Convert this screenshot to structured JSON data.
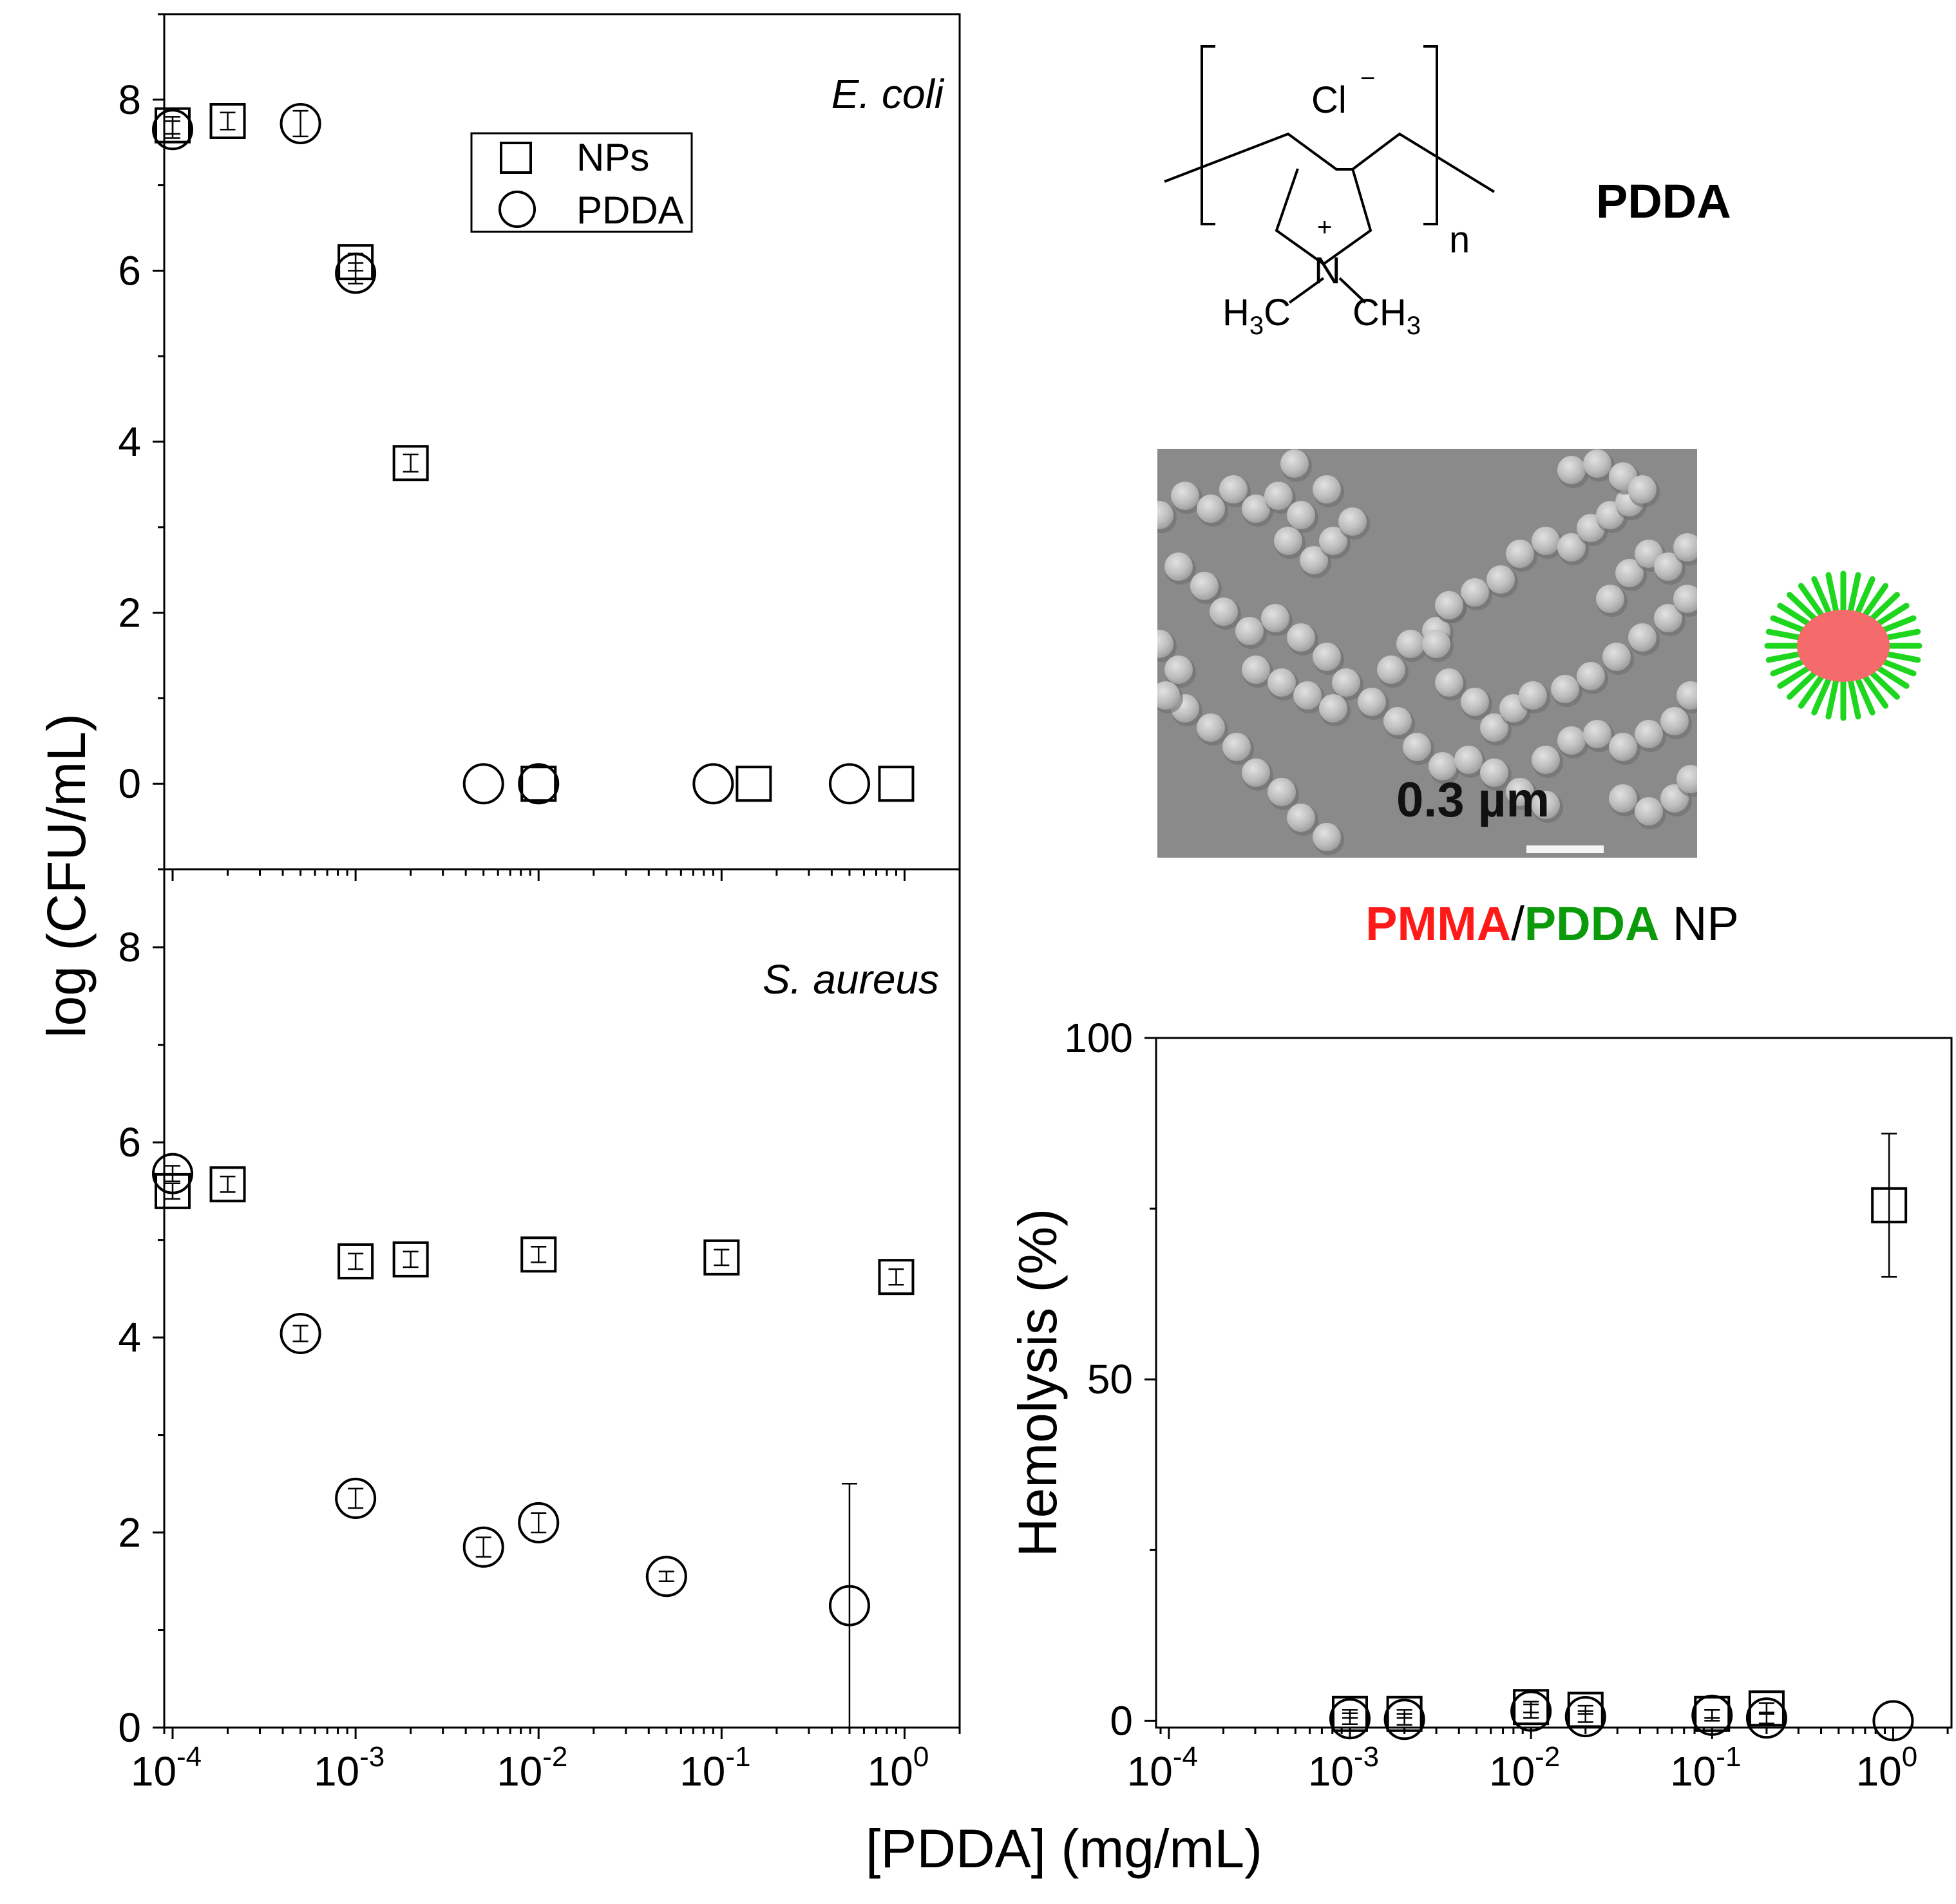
{
  "figure": {
    "shared_xlabel": "[PDDA] (mg/mL)",
    "shared_ylabel": "log (CFU/mL)"
  },
  "legend": {
    "items": [
      {
        "marker": "square",
        "label": "NPs"
      },
      {
        "marker": "circle",
        "label": "PDDA"
      }
    ]
  },
  "structure": {
    "title": "PDDA",
    "counter_ion": "Cl",
    "charge_minus": "−",
    "charge_plus": "+",
    "nitrogen": "N",
    "repeat_n": "n",
    "left_methyl": {
      "main": "H",
      "sub": "3",
      "tail": "C"
    },
    "right_methyl": {
      "main": "CH",
      "sub": "3"
    }
  },
  "sem": {
    "scale_label": "0.3 µm"
  },
  "np_label": {
    "parts": [
      {
        "text": "PMMA",
        "color": "#ff1a1a",
        "bold": true
      },
      {
        "text": "/",
        "color": "#000000",
        "bold": false
      },
      {
        "text": "PDDA",
        "color": "#0a9a0a",
        "bold": true
      },
      {
        "text": " NP",
        "color": "#000000",
        "bold": false
      }
    ]
  },
  "colors": {
    "np_core": "#f56b6b",
    "np_shell": "#1ed61e",
    "sem_bg": "#8a8a8a"
  },
  "chart_data": [
    {
      "id": "ecoli",
      "type": "scatter",
      "title": "E. coli",
      "xlabel": "[PDDA] (mg/mL)",
      "ylabel": "log (CFU/mL)",
      "xscale": "log",
      "xlim": [
        9e-05,
        2
      ],
      "ylim": [
        -1,
        9
      ],
      "yticks": [
        0,
        2,
        4,
        6,
        8
      ],
      "yticklabels": [
        "0",
        "2",
        "4",
        "6",
        "8"
      ],
      "xticks": [],
      "legend_position": "top-center",
      "series": [
        {
          "name": "NPs",
          "marker": "square",
          "points": [
            {
              "x": 0.0001,
              "y": 7.7,
              "err": 0.1
            },
            {
              "x": 0.0002,
              "y": 7.75,
              "err": 0.1
            },
            {
              "x": 0.001,
              "y": 6.1,
              "err": 0.1
            },
            {
              "x": 0.002,
              "y": 3.75,
              "err": 0.1
            },
            {
              "x": 0.01,
              "y": 0,
              "err": 0
            },
            {
              "x": 0.15,
              "y": 0,
              "err": 0
            },
            {
              "x": 0.9,
              "y": 0,
              "err": 0
            }
          ]
        },
        {
          "name": "PDDA",
          "marker": "circle",
          "points": [
            {
              "x": 0.0001,
              "y": 7.65,
              "err": 0.1
            },
            {
              "x": 0.0005,
              "y": 7.72,
              "err": 0.15
            },
            {
              "x": 0.001,
              "y": 5.97,
              "err": 0.12
            },
            {
              "x": 0.005,
              "y": 0,
              "err": 0
            },
            {
              "x": 0.01,
              "y": 0,
              "err": 0
            },
            {
              "x": 0.09,
              "y": 0,
              "err": 0
            },
            {
              "x": 0.5,
              "y": 0,
              "err": 0
            }
          ]
        }
      ]
    },
    {
      "id": "saureus",
      "type": "scatter",
      "title": "S. aureus",
      "xlabel": "[PDDA] (mg/mL)",
      "ylabel": "log (CFU/mL)",
      "xscale": "log",
      "xlim": [
        9e-05,
        2
      ],
      "ylim": [
        0,
        8.8
      ],
      "yticks": [
        0,
        2,
        4,
        6,
        8
      ],
      "yticklabels": [
        "0",
        "2",
        "4",
        "6",
        "8"
      ],
      "xticks": [
        0.0001,
        0.001,
        0.01,
        0.1,
        1
      ],
      "xticklabels": [
        {
          "base": "10",
          "exp": "-4"
        },
        {
          "base": "10",
          "exp": "-3"
        },
        {
          "base": "10",
          "exp": "-2"
        },
        {
          "base": "10",
          "exp": "-1"
        },
        {
          "base": "10",
          "exp": "0"
        }
      ],
      "series": [
        {
          "name": "NPs",
          "marker": "square",
          "points": [
            {
              "x": 0.0001,
              "y": 5.5,
              "err": 0.08
            },
            {
              "x": 0.0002,
              "y": 5.57,
              "err": 0.08
            },
            {
              "x": 0.001,
              "y": 4.78,
              "err": 0.08
            },
            {
              "x": 0.002,
              "y": 4.8,
              "err": 0.08
            },
            {
              "x": 0.01,
              "y": 4.85,
              "err": 0.08
            },
            {
              "x": 0.1,
              "y": 4.82,
              "err": 0.08
            },
            {
              "x": 0.9,
              "y": 4.62,
              "err": 0.08
            }
          ]
        },
        {
          "name": "PDDA",
          "marker": "circle",
          "points": [
            {
              "x": 0.0001,
              "y": 5.68,
              "err": 0.08
            },
            {
              "x": 0.0005,
              "y": 4.04,
              "err": 0.08
            },
            {
              "x": 0.001,
              "y": 2.35,
              "err": 0.1
            },
            {
              "x": 0.005,
              "y": 1.85,
              "err": 0.1
            },
            {
              "x": 0.01,
              "y": 2.1,
              "err": 0.1
            },
            {
              "x": 0.05,
              "y": 1.55,
              "err": 0.05
            },
            {
              "x": 0.5,
              "y": 1.25,
              "err": 1.25
            }
          ]
        }
      ]
    },
    {
      "id": "hemolysis",
      "type": "scatter",
      "title": "",
      "xlabel": "[PDDA] (mg/mL)",
      "ylabel": "Hemolysis (%)",
      "xscale": "log",
      "xlim": [
        8.5e-05,
        2.1
      ],
      "ylim": [
        -1,
        100
      ],
      "yticks": [
        0,
        50,
        100
      ],
      "yticklabels": [
        "0",
        "50",
        "100"
      ],
      "xticks": [
        0.0001,
        0.001,
        0.01,
        0.1,
        1
      ],
      "xticklabels": [
        {
          "base": "10",
          "exp": "-4"
        },
        {
          "base": "10",
          "exp": "-3"
        },
        {
          "base": "10",
          "exp": "-2"
        },
        {
          "base": "10",
          "exp": "-1"
        },
        {
          "base": "10",
          "exp": "0"
        }
      ],
      "series": [
        {
          "name": "NPs",
          "marker": "square",
          "points": [
            {
              "x": 0.001,
              "y": 1,
              "err": 0.6
            },
            {
              "x": 0.002,
              "y": 1,
              "err": 0.6
            },
            {
              "x": 0.01,
              "y": 2,
              "err": 0.8
            },
            {
              "x": 0.02,
              "y": 1.6,
              "err": 0.6
            },
            {
              "x": 0.1,
              "y": 1,
              "err": 0.6
            },
            {
              "x": 0.2,
              "y": 1.8,
              "err": 0.8
            },
            {
              "x": 0.95,
              "y": 75.5,
              "err": 10.5
            }
          ]
        },
        {
          "name": "PDDA",
          "marker": "circle",
          "points": [
            {
              "x": 0.001,
              "y": 0.3,
              "err": 0.8
            },
            {
              "x": 0.002,
              "y": 0.2,
              "err": 0.8
            },
            {
              "x": 0.01,
              "y": 1.4,
              "err": 1
            },
            {
              "x": 0.02,
              "y": 0.6,
              "err": 0.8
            },
            {
              "x": 0.1,
              "y": 0.8,
              "err": 0.8
            },
            {
              "x": 0.2,
              "y": 0.4,
              "err": 0.8
            },
            {
              "x": 1,
              "y": 0,
              "err": 0
            }
          ]
        }
      ]
    }
  ]
}
